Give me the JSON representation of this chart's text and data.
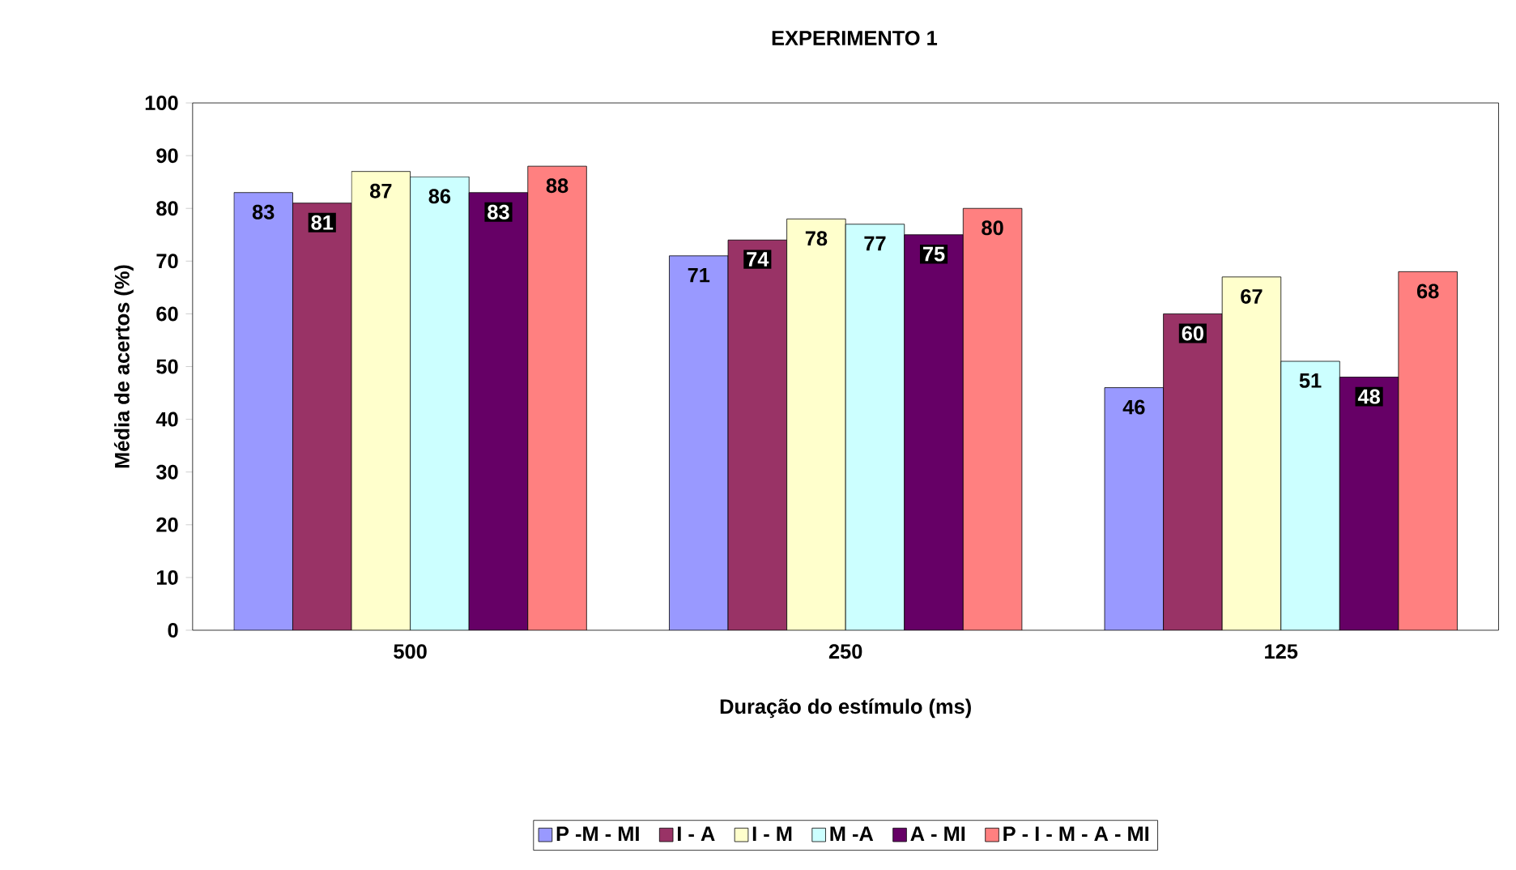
{
  "chart_data": {
    "type": "bar",
    "title": "EXPERIMENTO 1",
    "xlabel": "Duração do estímulo (ms)",
    "ylabel": "Média de acertos (%)",
    "categories": [
      "500",
      "250",
      "125"
    ],
    "series": [
      {
        "name": "P -M - MI",
        "color": "#9999ff",
        "values": [
          83,
          71,
          46
        ]
      },
      {
        "name": "I - A",
        "color": "#993366",
        "values": [
          81,
          74,
          60
        ]
      },
      {
        "name": "I - M",
        "color": "#ffffcc",
        "values": [
          87,
          78,
          67
        ]
      },
      {
        "name": "M -A",
        "color": "#ccffff",
        "values": [
          86,
          77,
          51
        ]
      },
      {
        "name": "A - MI",
        "color": "#660066",
        "values": [
          83,
          75,
          48
        ]
      },
      {
        "name": "P - I - M - A - MI",
        "color": "#ff8080",
        "values": [
          88,
          80,
          68
        ]
      }
    ],
    "ylim": [
      0,
      100
    ],
    "yticks": [
      0,
      10,
      20,
      30,
      40,
      50,
      60,
      70,
      80,
      90,
      100
    ],
    "data_labels": true,
    "legend": "bottom",
    "grid": false
  }
}
